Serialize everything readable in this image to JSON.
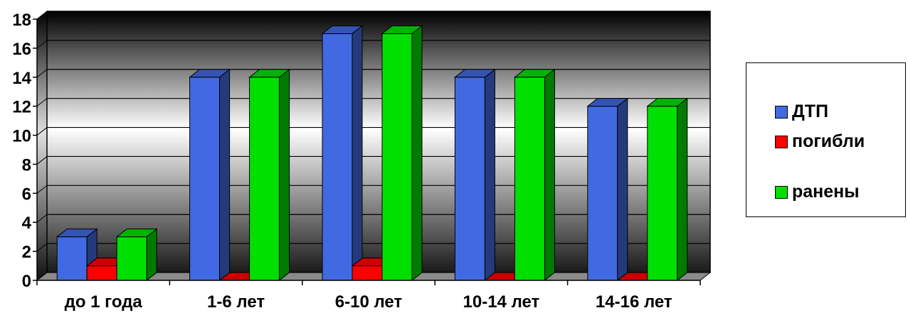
{
  "chart_data": {
    "type": "bar",
    "categories": [
      "до 1 года",
      "1-6 лет",
      "6-10 лет",
      "10-14 лет",
      "14-16 лет"
    ],
    "series": [
      {
        "name": "ДТП",
        "values": [
          3,
          14,
          17,
          14,
          12
        ],
        "color": "#4169e1"
      },
      {
        "name": "погибли",
        "values": [
          1,
          0,
          1,
          0,
          0
        ],
        "color": "#ff0000"
      },
      {
        "name": "ранены",
        "values": [
          3,
          14,
          17,
          14,
          12
        ],
        "color": "#00e000"
      }
    ],
    "y_ticks": [
      "0",
      "2",
      "4",
      "6",
      "8",
      "10",
      "12",
      "14",
      "16",
      "18"
    ],
    "ylim": [
      0,
      18
    ],
    "grid": true,
    "legend_position": "right",
    "three_d": true
  }
}
